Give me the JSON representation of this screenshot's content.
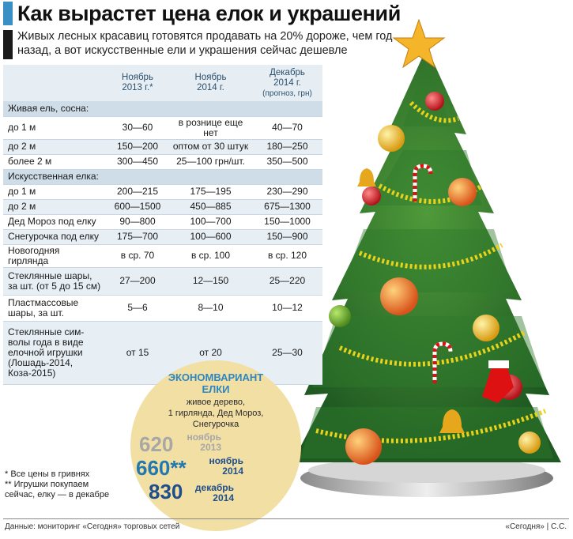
{
  "title": "Как вырастет цена елок и украшений",
  "subtitle": "Живых лесных красавиц готовятся продавать на 20% дороже, чем год назад, а вот искусственные ели и украшения сейчас дешевле",
  "table": {
    "headers": [
      {
        "line1": "Ноябрь",
        "line2": "2013 г.*",
        "line3": ""
      },
      {
        "line1": "Ноябрь",
        "line2": "2014 г.",
        "line3": ""
      },
      {
        "line1": "Декабрь",
        "line2": "2014 г.",
        "line3": "(прогноз, грн)"
      }
    ],
    "sections": [
      {
        "label": "Живая ель, сосна:",
        "rows": [
          {
            "name": "до 1 м",
            "v1": "30—60",
            "v2": "в рознице еще нет",
            "v3": "40—70"
          },
          {
            "name": "до 2 м",
            "v1": "150—200",
            "v2": "оптом от 30 штук",
            "v3": "180—250"
          },
          {
            "name": "более 2 м",
            "v1": "300—450",
            "v2": "25—100 грн/шт.",
            "v3": "350—500"
          }
        ]
      },
      {
        "label": "Искусственная елка:",
        "rows": [
          {
            "name": "до 1 м",
            "v1": "200—215",
            "v2": "175—195",
            "v3": "230—290"
          },
          {
            "name": "до 2 м",
            "v1": "600—1500",
            "v2": "450—885",
            "v3": "675—1300"
          },
          {
            "name": "Дед Мороз под елку",
            "v1": "90—800",
            "v2": "100—700",
            "v3": "150—1000"
          },
          {
            "name": "Снегурочка под елку",
            "v1": "175—700",
            "v2": "100—600",
            "v3": "150—900"
          },
          {
            "name": "Новогодняя гирлянда",
            "v1": "в ср. 70",
            "v2": "в ср. 100",
            "v3": "в ср. 120"
          }
        ]
      }
    ],
    "multi_rows": [
      {
        "name_l1": "Стеклянные шары,",
        "name_l2": "за шт. (от 5 до 15 см)",
        "v1": "27—200",
        "v2": "12—150",
        "v3": "25—220"
      },
      {
        "name_l1": "Пластмассовые",
        "name_l2": "шары, за шт.",
        "v1": "5—6",
        "v2": "8—10",
        "v3": "10—12"
      }
    ],
    "symbol_row": {
      "lines": [
        "Стеклянные сим-",
        "волы года в виде",
        "елочной игрушки",
        "(Лошадь-2014,",
        "Коза-2015)"
      ],
      "v1": "от 15",
      "v2": "от 20",
      "v3": "25—30"
    }
  },
  "econ": {
    "title_l1": "ЭКОНОМВАРИАНТ",
    "title_l2": "ЕЛКИ",
    "desc_l1": "живое дерево,",
    "desc_l2": "1 гирлянда, Дед Мороз,",
    "desc_l3": "Снегурочка",
    "items": [
      {
        "value": "620",
        "month": "ноябрь",
        "year": "2013"
      },
      {
        "value": "660**",
        "month": "ноябрь",
        "year": "2014"
      },
      {
        "value": "830",
        "month": "декабрь",
        "year": "2014"
      }
    ]
  },
  "footnotes": [
    "* Все цены в гривнях",
    "** Игрушки покупаем",
    "сейчас, елку — в декабре"
  ],
  "footer_left": "Данные: мониторинг «Сегодня» торговых сетей",
  "footer_right": "«Сегодня» | С.С.",
  "colors": {
    "accent_blue": "#3a8fc4",
    "table_header": "#e6eef4",
    "table_section": "#cfdde8",
    "circle": "#f2dfa4"
  }
}
